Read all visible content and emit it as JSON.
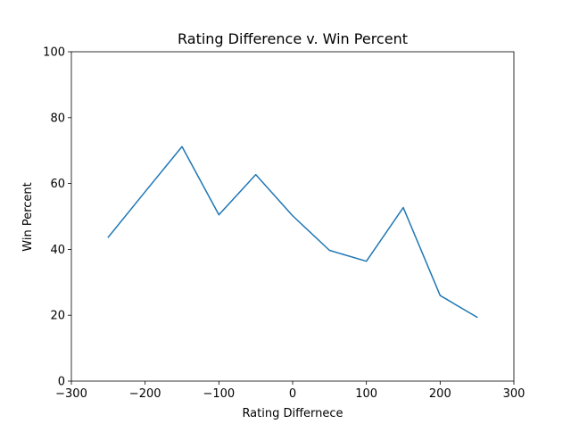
{
  "chart_data": {
    "type": "line",
    "title": "Rating Difference v. Win Percent",
    "xlabel": "Rating Differnece",
    "ylabel": "Win Percent",
    "xlim": [
      -300,
      300
    ],
    "ylim": [
      0,
      100
    ],
    "xticks": [
      -300,
      -200,
      -100,
      0,
      100,
      200,
      300
    ],
    "yticks": [
      0,
      20,
      40,
      60,
      80,
      100
    ],
    "xtick_labels": [
      "−300",
      "−200",
      "−100",
      "0",
      "100",
      "200",
      "300"
    ],
    "ytick_labels": [
      "0",
      "20",
      "40",
      "60",
      "80",
      "100"
    ],
    "grid": false,
    "legend": false,
    "series": [
      {
        "color": "#1f77b4",
        "x": [
          -250,
          -200,
          -150,
          -100,
          -50,
          0,
          50,
          100,
          150,
          200,
          250
        ],
        "y": [
          43.7,
          57.5,
          71.2,
          50.5,
          62.7,
          50.2,
          39.7,
          36.4,
          52.7,
          26.0,
          19.4
        ]
      }
    ]
  }
}
